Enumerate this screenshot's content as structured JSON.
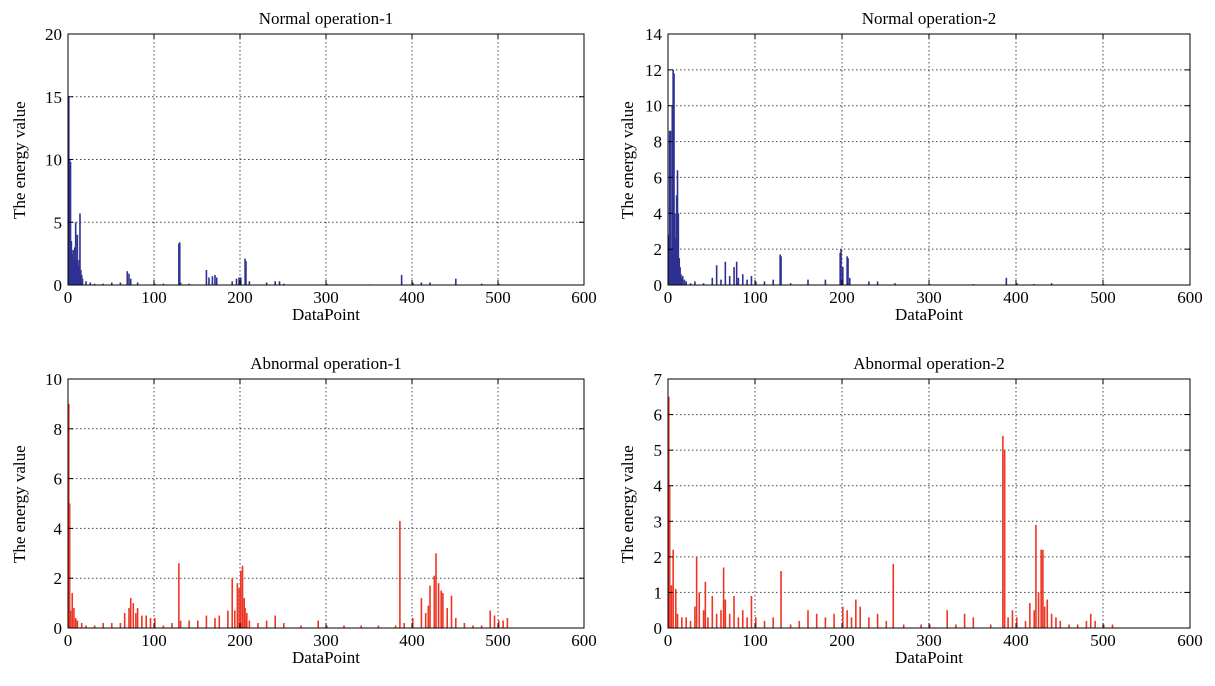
{
  "chart_data": [
    {
      "type": "bar",
      "title": "Normal operation-1",
      "xlabel": "DataPoint",
      "ylabel": "The energy value",
      "xlim": [
        0,
        600
      ],
      "ylim": [
        0,
        20
      ],
      "xticks": [
        0,
        100,
        200,
        300,
        400,
        500,
        600
      ],
      "yticks": [
        0,
        5,
        10,
        15,
        20
      ],
      "grid": true,
      "color": "#2e3192",
      "series": [
        {
          "x": [
            0,
            1,
            2,
            3,
            4,
            5,
            6,
            7,
            8,
            9,
            10,
            11,
            12,
            13,
            14,
            15,
            16,
            20,
            25,
            30,
            40,
            50,
            60,
            68,
            70,
            72,
            80,
            100,
            110,
            128,
            129,
            130,
            140,
            160,
            163,
            167,
            170,
            172,
            190,
            195,
            198,
            200,
            205,
            206,
            210,
            230,
            240,
            245,
            250,
            300,
            350,
            387,
            400,
            410,
            420,
            450,
            480,
            500
          ],
          "y": [
            15.0,
            10.0,
            9.8,
            3.5,
            2.5,
            2.8,
            2.0,
            3.0,
            5.0,
            2.0,
            4.0,
            1.5,
            2.0,
            5.7,
            1.2,
            0.8,
            0.5,
            0.3,
            0.2,
            0.1,
            0.1,
            0.2,
            0.2,
            1.1,
            0.9,
            0.5,
            0.2,
            0.1,
            0.1,
            3.3,
            3.4,
            0.2,
            0.1,
            1.2,
            0.6,
            0.7,
            0.8,
            0.6,
            0.3,
            0.5,
            0.6,
            0.6,
            2.1,
            1.9,
            0.3,
            0.2,
            0.3,
            0.3,
            0.1,
            0.1,
            0.05,
            0.8,
            0.2,
            0.2,
            0.2,
            0.5,
            0.1,
            0.1
          ]
        }
      ]
    },
    {
      "type": "bar",
      "title": "Normal operation-2",
      "xlabel": "DataPoint",
      "ylabel": "The energy value",
      "xlim": [
        0,
        600
      ],
      "ylim": [
        0,
        14
      ],
      "xticks": [
        0,
        100,
        200,
        300,
        400,
        500,
        600
      ],
      "yticks": [
        0,
        2,
        4,
        6,
        8,
        10,
        12,
        14
      ],
      "grid": true,
      "color": "#2e3192",
      "series": [
        {
          "x": [
            0,
            1,
            2,
            3,
            4,
            5,
            6,
            7,
            8,
            9,
            10,
            11,
            12,
            13,
            14,
            15,
            16,
            18,
            20,
            25,
            30,
            40,
            50,
            55,
            60,
            65,
            70,
            75,
            78,
            80,
            85,
            90,
            95,
            100,
            110,
            120,
            128,
            129,
            140,
            160,
            180,
            197,
            198,
            200,
            205,
            206,
            208,
            230,
            240,
            260,
            300,
            350,
            388,
            400,
            420,
            440,
            500
          ],
          "y": [
            2.8,
            8.6,
            8.6,
            2.0,
            10.0,
            12.0,
            11.8,
            4.0,
            2.6,
            5.0,
            6.4,
            4.0,
            1.5,
            1.0,
            0.6,
            0.4,
            0.5,
            0.3,
            0.2,
            0.1,
            0.2,
            0.1,
            0.4,
            1.1,
            0.3,
            1.3,
            0.5,
            1.0,
            1.3,
            0.4,
            0.6,
            0.3,
            0.5,
            0.2,
            0.2,
            0.3,
            1.7,
            1.6,
            0.1,
            0.3,
            0.3,
            1.8,
            2.0,
            1.0,
            1.6,
            1.5,
            0.4,
            0.2,
            0.2,
            0.1,
            0.05,
            0.05,
            0.4,
            0.1,
            0.05,
            0.1,
            0.05
          ]
        }
      ]
    },
    {
      "type": "bar",
      "title": "Abnormal operation-1",
      "xlabel": "DataPoint",
      "ylabel": "The energy value",
      "xlim": [
        0,
        600
      ],
      "ylim": [
        0,
        10
      ],
      "xticks": [
        0,
        100,
        200,
        300,
        400,
        500,
        600
      ],
      "yticks": [
        0,
        2,
        4,
        6,
        8,
        10
      ],
      "grid": true,
      "color": "#ed3524",
      "series": [
        {
          "x": [
            0,
            1,
            2,
            4,
            6,
            8,
            10,
            15,
            20,
            30,
            40,
            50,
            60,
            65,
            70,
            72,
            75,
            78,
            80,
            85,
            90,
            95,
            100,
            110,
            120,
            128,
            130,
            140,
            150,
            160,
            170,
            175,
            185,
            190,
            193,
            196,
            198,
            200,
            202,
            204,
            205,
            207,
            210,
            220,
            230,
            240,
            250,
            270,
            290,
            300,
            320,
            340,
            360,
            380,
            385,
            390,
            400,
            410,
            415,
            418,
            420,
            425,
            427,
            430,
            433,
            435,
            440,
            445,
            450,
            460,
            470,
            480,
            490,
            495,
            500,
            505,
            510
          ],
          "y": [
            9.0,
            5.0,
            0.7,
            1.4,
            0.8,
            0.4,
            0.3,
            0.2,
            0.1,
            0.1,
            0.2,
            0.2,
            0.2,
            0.6,
            0.8,
            1.2,
            1.0,
            0.6,
            0.8,
            0.5,
            0.5,
            0.4,
            0.4,
            0.1,
            0.2,
            2.6,
            0.3,
            0.3,
            0.3,
            0.5,
            0.4,
            0.5,
            0.7,
            2.0,
            0.7,
            1.8,
            1.6,
            2.3,
            2.5,
            1.2,
            0.8,
            0.6,
            0.3,
            0.2,
            0.3,
            0.5,
            0.2,
            0.1,
            0.3,
            0.1,
            0.1,
            0.1,
            0.1,
            0.1,
            4.3,
            0.2,
            0.4,
            1.2,
            0.6,
            0.9,
            1.7,
            2.1,
            3.0,
            1.8,
            1.5,
            1.4,
            0.8,
            1.3,
            0.4,
            0.2,
            0.1,
            0.1,
            0.7,
            0.5,
            0.3,
            0.3,
            0.4
          ]
        }
      ]
    },
    {
      "type": "bar",
      "title": "Abnormal operation-2",
      "xlabel": "DataPoint",
      "ylabel": "The energy value",
      "xlim": [
        0,
        600
      ],
      "ylim": [
        0,
        7
      ],
      "xticks": [
        0,
        100,
        200,
        300,
        400,
        500,
        600
      ],
      "yticks": [
        0,
        1,
        2,
        3,
        4,
        5,
        6,
        7
      ],
      "grid": true,
      "color": "#ed3524",
      "series": [
        {
          "x": [
            0,
            1,
            3,
            5,
            8,
            10,
            15,
            20,
            25,
            30,
            32,
            35,
            40,
            42,
            45,
            50,
            55,
            60,
            63,
            65,
            70,
            75,
            80,
            85,
            90,
            95,
            100,
            110,
            120,
            129,
            140,
            150,
            160,
            170,
            180,
            190,
            200,
            205,
            210,
            215,
            220,
            230,
            240,
            250,
            258,
            270,
            290,
            300,
            320,
            330,
            340,
            350,
            370,
            384,
            386,
            390,
            395,
            400,
            410,
            415,
            420,
            422,
            425,
            428,
            430,
            432,
            435,
            440,
            445,
            450,
            460,
            470,
            480,
            485,
            490,
            500,
            510
          ],
          "y": [
            6.5,
            4.0,
            1.2,
            2.2,
            1.1,
            0.4,
            0.3,
            0.3,
            0.2,
            0.6,
            2.0,
            1.0,
            0.5,
            1.3,
            0.3,
            0.9,
            0.4,
            0.5,
            1.7,
            0.8,
            0.4,
            0.9,
            0.3,
            0.5,
            0.3,
            0.9,
            0.3,
            0.2,
            0.3,
            1.6,
            0.1,
            0.2,
            0.5,
            0.4,
            0.3,
            0.4,
            0.6,
            0.5,
            0.3,
            0.8,
            0.6,
            0.3,
            0.4,
            0.2,
            1.8,
            0.1,
            0.1,
            0.1,
            0.5,
            0.1,
            0.4,
            0.3,
            0.1,
            5.4,
            5.0,
            0.3,
            0.5,
            0.3,
            0.2,
            0.7,
            0.5,
            2.9,
            1.0,
            2.2,
            2.2,
            0.6,
            0.8,
            0.4,
            0.3,
            0.2,
            0.1,
            0.1,
            0.2,
            0.4,
            0.2,
            0.1,
            0.1
          ]
        }
      ]
    }
  ]
}
